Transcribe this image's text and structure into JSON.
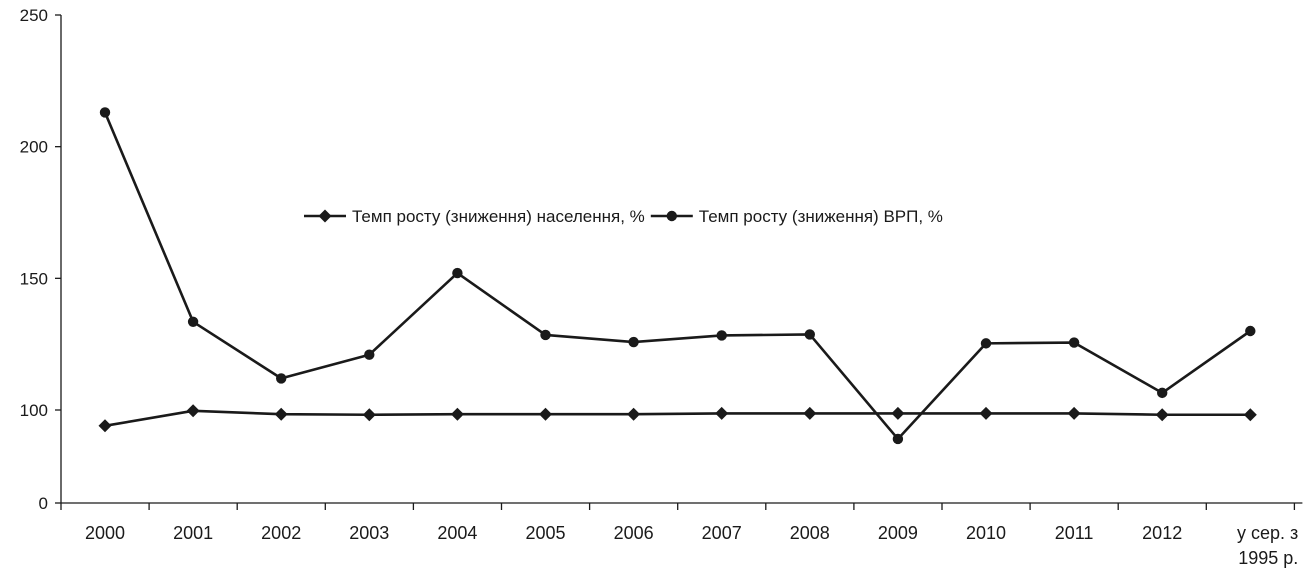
{
  "chart_data": {
    "type": "line",
    "categories": [
      "2000",
      "2001",
      "2002",
      "2003",
      "2004",
      "2005",
      "2006",
      "2007",
      "2008",
      "2009",
      "2010",
      "2011",
      "2012",
      "у сер. з|1995 р."
    ],
    "y_ticks": [
      "0",
      "100",
      "150",
      "200",
      "250"
    ],
    "series": [
      {
        "name": "Темп росту (зниження) населення, %",
        "marker": "diamond",
        "values": [
          94,
          99.7,
          98.4,
          98.2,
          98.4,
          98.4,
          98.4,
          98.7,
          98.7,
          98.7,
          98.7,
          98.7,
          98.2,
          98.2
        ]
      },
      {
        "name": "Темп росту (зниження) ВРП, %",
        "marker": "circle",
        "values": [
          213,
          133.5,
          112,
          121,
          152,
          128.5,
          125.8,
          128.3,
          128.7,
          89,
          125.3,
          125.6,
          106.5,
          130
        ]
      }
    ],
    "legend_position": "center",
    "grid": false,
    "colors": {
      "line": "#1a1a1a",
      "axis": "#1a1a1a"
    }
  }
}
